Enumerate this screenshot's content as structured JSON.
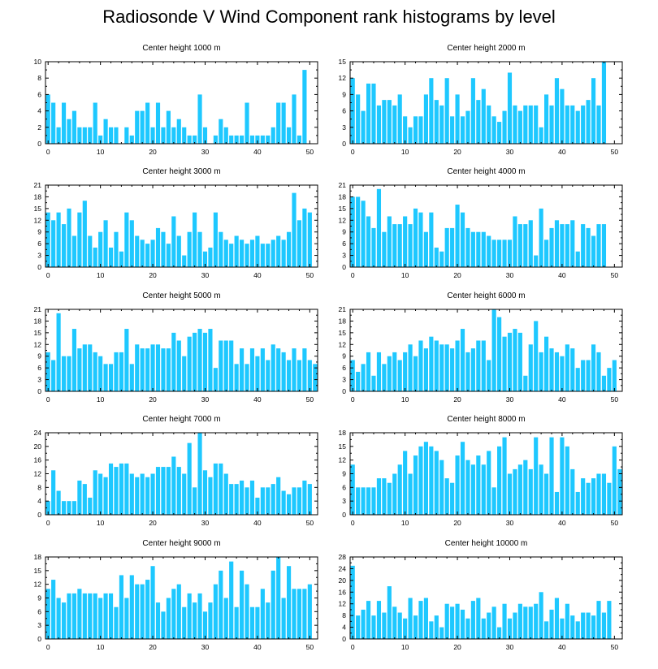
{
  "title": "Radiosonde V Wind Component rank histograms by level",
  "chart_data": [
    {
      "type": "bar",
      "title": "Center height 1000 m",
      "ylim": [
        0,
        10
      ],
      "yticks": [
        0,
        2,
        4,
        6,
        8,
        10
      ],
      "xlim": [
        -0.5,
        51.5
      ],
      "xticks": [
        0,
        10,
        20,
        30,
        40,
        50
      ],
      "categories": [
        0,
        1,
        2,
        3,
        4,
        5,
        6,
        7,
        8,
        9,
        10,
        11,
        12,
        13,
        14,
        15,
        16,
        17,
        18,
        19,
        20,
        21,
        22,
        23,
        24,
        25,
        26,
        27,
        28,
        29,
        30,
        31,
        32,
        33,
        34,
        35,
        36,
        37,
        38,
        39,
        40,
        41,
        42,
        43,
        44,
        45,
        46,
        47,
        48,
        49,
        50,
        51
      ],
      "values": [
        6,
        5,
        2,
        5,
        3,
        4,
        2,
        2,
        2,
        5,
        1,
        3,
        2,
        2,
        0,
        2,
        1,
        4,
        4,
        5,
        2,
        5,
        2,
        4,
        2,
        3,
        2,
        1,
        1,
        6,
        2,
        0,
        1,
        3,
        2,
        1,
        1,
        1,
        5,
        1,
        1,
        1,
        1,
        2,
        5,
        5,
        2,
        6,
        1,
        9,
        0,
        0
      ]
    },
    {
      "type": "bar",
      "title": "Center height 2000 m",
      "ylim": [
        0,
        15
      ],
      "yticks": [
        0,
        3,
        6,
        9,
        12,
        15
      ],
      "xlim": [
        -0.5,
        51.5
      ],
      "xticks": [
        0,
        10,
        20,
        30,
        40,
        50
      ],
      "categories": [
        0,
        1,
        2,
        3,
        4,
        5,
        6,
        7,
        8,
        9,
        10,
        11,
        12,
        13,
        14,
        15,
        16,
        17,
        18,
        19,
        20,
        21,
        22,
        23,
        24,
        25,
        26,
        27,
        28,
        29,
        30,
        31,
        32,
        33,
        34,
        35,
        36,
        37,
        38,
        39,
        40,
        41,
        42,
        43,
        44,
        45,
        46,
        47,
        48,
        49,
        50,
        51
      ],
      "values": [
        12,
        9,
        6,
        11,
        11,
        7,
        8,
        8,
        7,
        9,
        5,
        3,
        5,
        5,
        9,
        12,
        8,
        7,
        12,
        5,
        9,
        5,
        6,
        12,
        8,
        10,
        7,
        5,
        4,
        6,
        13,
        7,
        6,
        7,
        7,
        7,
        3,
        9,
        7,
        12,
        10,
        7,
        7,
        6,
        7,
        8,
        12,
        7,
        15,
        0,
        0,
        0
      ]
    },
    {
      "type": "bar",
      "title": "Center height 3000 m",
      "ylim": [
        0,
        21
      ],
      "yticks": [
        0,
        3,
        6,
        9,
        12,
        15,
        18,
        21
      ],
      "xlim": [
        -0.5,
        51.5
      ],
      "xticks": [
        0,
        10,
        20,
        30,
        40,
        50
      ],
      "categories": [
        0,
        1,
        2,
        3,
        4,
        5,
        6,
        7,
        8,
        9,
        10,
        11,
        12,
        13,
        14,
        15,
        16,
        17,
        18,
        19,
        20,
        21,
        22,
        23,
        24,
        25,
        26,
        27,
        28,
        29,
        30,
        31,
        32,
        33,
        34,
        35,
        36,
        37,
        38,
        39,
        40,
        41,
        42,
        43,
        44,
        45,
        46,
        47,
        48,
        49,
        50,
        51
      ],
      "values": [
        14,
        12,
        14,
        11,
        15,
        8,
        14,
        17,
        8,
        5,
        9,
        12,
        5,
        9,
        4,
        14,
        12,
        8,
        7,
        6,
        7,
        10,
        9,
        6,
        13,
        8,
        3,
        9,
        14,
        9,
        4,
        5,
        14,
        9,
        7,
        6,
        8,
        7,
        6,
        7,
        8,
        6,
        6,
        7,
        8,
        7,
        9,
        19,
        12,
        15,
        14,
        0
      ]
    },
    {
      "type": "bar",
      "title": "Center height 4000 m",
      "ylim": [
        0,
        21
      ],
      "yticks": [
        0,
        3,
        6,
        9,
        12,
        15,
        18,
        21
      ],
      "xlim": [
        -0.5,
        51.5
      ],
      "xticks": [
        0,
        10,
        20,
        30,
        40,
        50
      ],
      "categories": [
        0,
        1,
        2,
        3,
        4,
        5,
        6,
        7,
        8,
        9,
        10,
        11,
        12,
        13,
        14,
        15,
        16,
        17,
        18,
        19,
        20,
        21,
        22,
        23,
        24,
        25,
        26,
        27,
        28,
        29,
        30,
        31,
        32,
        33,
        34,
        35,
        36,
        37,
        38,
        39,
        40,
        41,
        42,
        43,
        44,
        45,
        46,
        47,
        48,
        49,
        50,
        51
      ],
      "values": [
        18,
        18,
        17,
        13,
        10,
        20,
        9,
        13,
        11,
        11,
        13,
        11,
        15,
        14,
        9,
        14,
        5,
        4,
        10,
        10,
        16,
        14,
        10,
        9,
        9,
        9,
        8,
        7,
        7,
        7,
        7,
        13,
        11,
        11,
        12,
        3,
        15,
        7,
        10,
        12,
        11,
        11,
        12,
        4,
        11,
        10,
        8,
        11,
        11,
        0,
        0,
        0
      ]
    },
    {
      "type": "bar",
      "title": "Center height 5000 m",
      "ylim": [
        0,
        21
      ],
      "yticks": [
        0,
        3,
        6,
        9,
        12,
        15,
        18,
        21
      ],
      "xlim": [
        -0.5,
        51.5
      ],
      "xticks": [
        0,
        10,
        20,
        30,
        40,
        50
      ],
      "categories": [
        0,
        1,
        2,
        3,
        4,
        5,
        6,
        7,
        8,
        9,
        10,
        11,
        12,
        13,
        14,
        15,
        16,
        17,
        18,
        19,
        20,
        21,
        22,
        23,
        24,
        25,
        26,
        27,
        28,
        29,
        30,
        31,
        32,
        33,
        34,
        35,
        36,
        37,
        38,
        39,
        40,
        41,
        42,
        43,
        44,
        45,
        46,
        47,
        48,
        49,
        50,
        51
      ],
      "values": [
        10,
        8,
        20,
        9,
        9,
        16,
        11,
        12,
        12,
        10,
        9,
        7,
        7,
        10,
        10,
        16,
        7,
        12,
        11,
        11,
        12,
        12,
        11,
        11,
        15,
        13,
        9,
        14,
        15,
        16,
        15,
        16,
        6,
        13,
        13,
        13,
        7,
        11,
        7,
        11,
        9,
        11,
        8,
        12,
        11,
        10,
        8,
        11,
        8,
        11,
        8,
        7
      ]
    },
    {
      "type": "bar",
      "title": "Center height 6000 m",
      "ylim": [
        0,
        21
      ],
      "yticks": [
        0,
        3,
        6,
        9,
        12,
        15,
        18,
        21
      ],
      "xlim": [
        -0.5,
        51.5
      ],
      "xticks": [
        0,
        10,
        20,
        30,
        40,
        50
      ],
      "categories": [
        0,
        1,
        2,
        3,
        4,
        5,
        6,
        7,
        8,
        9,
        10,
        11,
        12,
        13,
        14,
        15,
        16,
        17,
        18,
        19,
        20,
        21,
        22,
        23,
        24,
        25,
        26,
        27,
        28,
        29,
        30,
        31,
        32,
        33,
        34,
        35,
        36,
        37,
        38,
        39,
        40,
        41,
        42,
        43,
        44,
        45,
        46,
        47,
        48,
        49,
        50,
        51
      ],
      "values": [
        8,
        5,
        7,
        10,
        4,
        10,
        7,
        9,
        10,
        8,
        10,
        12,
        9,
        13,
        11,
        14,
        13,
        12,
        12,
        11,
        13,
        16,
        10,
        11,
        13,
        13,
        8,
        21,
        19,
        14,
        15,
        16,
        15,
        4,
        12,
        18,
        10,
        14,
        11,
        10,
        9,
        12,
        11,
        6,
        8,
        8,
        12,
        10,
        4,
        6,
        8,
        0
      ]
    },
    {
      "type": "bar",
      "title": "Center height 7000 m",
      "ylim": [
        0,
        24
      ],
      "yticks": [
        0,
        4,
        8,
        12,
        16,
        20,
        24
      ],
      "xlim": [
        -0.5,
        51.5
      ],
      "xticks": [
        0,
        10,
        20,
        30,
        40,
        50
      ],
      "categories": [
        0,
        1,
        2,
        3,
        4,
        5,
        6,
        7,
        8,
        9,
        10,
        11,
        12,
        13,
        14,
        15,
        16,
        17,
        18,
        19,
        20,
        21,
        22,
        23,
        24,
        25,
        26,
        27,
        28,
        29,
        30,
        31,
        32,
        33,
        34,
        35,
        36,
        37,
        38,
        39,
        40,
        41,
        42,
        43,
        44,
        45,
        46,
        47,
        48,
        49,
        50,
        51
      ],
      "values": [
        4,
        13,
        7,
        4,
        4,
        4,
        10,
        9,
        5,
        13,
        12,
        11,
        15,
        14,
        15,
        15,
        12,
        11,
        12,
        11,
        12,
        14,
        14,
        14,
        17,
        14,
        12,
        21,
        8,
        24,
        13,
        11,
        15,
        15,
        12,
        9,
        9,
        10,
        8,
        10,
        5,
        8,
        8,
        9,
        11,
        7,
        6,
        8,
        8,
        10,
        9,
        0
      ]
    },
    {
      "type": "bar",
      "title": "Center height 8000 m",
      "ylim": [
        0,
        18
      ],
      "yticks": [
        0,
        3,
        6,
        9,
        12,
        15,
        18
      ],
      "xlim": [
        -0.5,
        51.5
      ],
      "xticks": [
        0,
        10,
        20,
        30,
        40,
        50
      ],
      "categories": [
        0,
        1,
        2,
        3,
        4,
        5,
        6,
        7,
        8,
        9,
        10,
        11,
        12,
        13,
        14,
        15,
        16,
        17,
        18,
        19,
        20,
        21,
        22,
        23,
        24,
        25,
        26,
        27,
        28,
        29,
        30,
        31,
        32,
        33,
        34,
        35,
        36,
        37,
        38,
        39,
        40,
        41,
        42,
        43,
        44,
        45,
        46,
        47,
        48,
        49,
        50,
        51
      ],
      "values": [
        11,
        6,
        6,
        6,
        6,
        8,
        8,
        7,
        9,
        11,
        14,
        9,
        13,
        15,
        16,
        15,
        14,
        12,
        8,
        7,
        13,
        16,
        12,
        11,
        13,
        11,
        14,
        6,
        15,
        17,
        9,
        10,
        11,
        12,
        10,
        17,
        11,
        9,
        17,
        5,
        17,
        15,
        10,
        5,
        8,
        7,
        8,
        9,
        9,
        7,
        15,
        10
      ]
    },
    {
      "type": "bar",
      "title": "Center height 9000 m",
      "ylim": [
        0,
        18
      ],
      "yticks": [
        0,
        3,
        6,
        9,
        12,
        15,
        18
      ],
      "xlim": [
        -0.5,
        51.5
      ],
      "xticks": [
        0,
        10,
        20,
        30,
        40,
        50
      ],
      "categories": [
        0,
        1,
        2,
        3,
        4,
        5,
        6,
        7,
        8,
        9,
        10,
        11,
        12,
        13,
        14,
        15,
        16,
        17,
        18,
        19,
        20,
        21,
        22,
        23,
        24,
        25,
        26,
        27,
        28,
        29,
        30,
        31,
        32,
        33,
        34,
        35,
        36,
        37,
        38,
        39,
        40,
        41,
        42,
        43,
        44,
        45,
        46,
        47,
        48,
        49,
        50,
        51
      ],
      "values": [
        11,
        13,
        9,
        8,
        10,
        10,
        11,
        10,
        10,
        10,
        9,
        10,
        10,
        7,
        14,
        9,
        14,
        12,
        12,
        13,
        16,
        8,
        6,
        9,
        11,
        12,
        7,
        10,
        8,
        10,
        6,
        8,
        12,
        15,
        9,
        17,
        7,
        15,
        12,
        7,
        7,
        11,
        8,
        15,
        18,
        9,
        16,
        11,
        11,
        11,
        12,
        0
      ]
    },
    {
      "type": "bar",
      "title": "Center height 10000 m",
      "ylim": [
        0,
        28
      ],
      "yticks": [
        0,
        4,
        8,
        12,
        16,
        20,
        24,
        28
      ],
      "xlim": [
        -0.5,
        51.5
      ],
      "xticks": [
        0,
        10,
        20,
        30,
        40,
        50
      ],
      "categories": [
        0,
        1,
        2,
        3,
        4,
        5,
        6,
        7,
        8,
        9,
        10,
        11,
        12,
        13,
        14,
        15,
        16,
        17,
        18,
        19,
        20,
        21,
        22,
        23,
        24,
        25,
        26,
        27,
        28,
        29,
        30,
        31,
        32,
        33,
        34,
        35,
        36,
        37,
        38,
        39,
        40,
        41,
        42,
        43,
        44,
        45,
        46,
        47,
        48,
        49,
        50,
        51
      ],
      "values": [
        25,
        8,
        10,
        13,
        8,
        13,
        9,
        18,
        11,
        9,
        7,
        14,
        8,
        13,
        14,
        6,
        8,
        4,
        12,
        11,
        12,
        10,
        7,
        13,
        14,
        7,
        9,
        11,
        4,
        12,
        7,
        9,
        12,
        11,
        11,
        12,
        16,
        6,
        10,
        14,
        7,
        12,
        8,
        6,
        9,
        9,
        8,
        13,
        9,
        13,
        0,
        0
      ]
    }
  ]
}
